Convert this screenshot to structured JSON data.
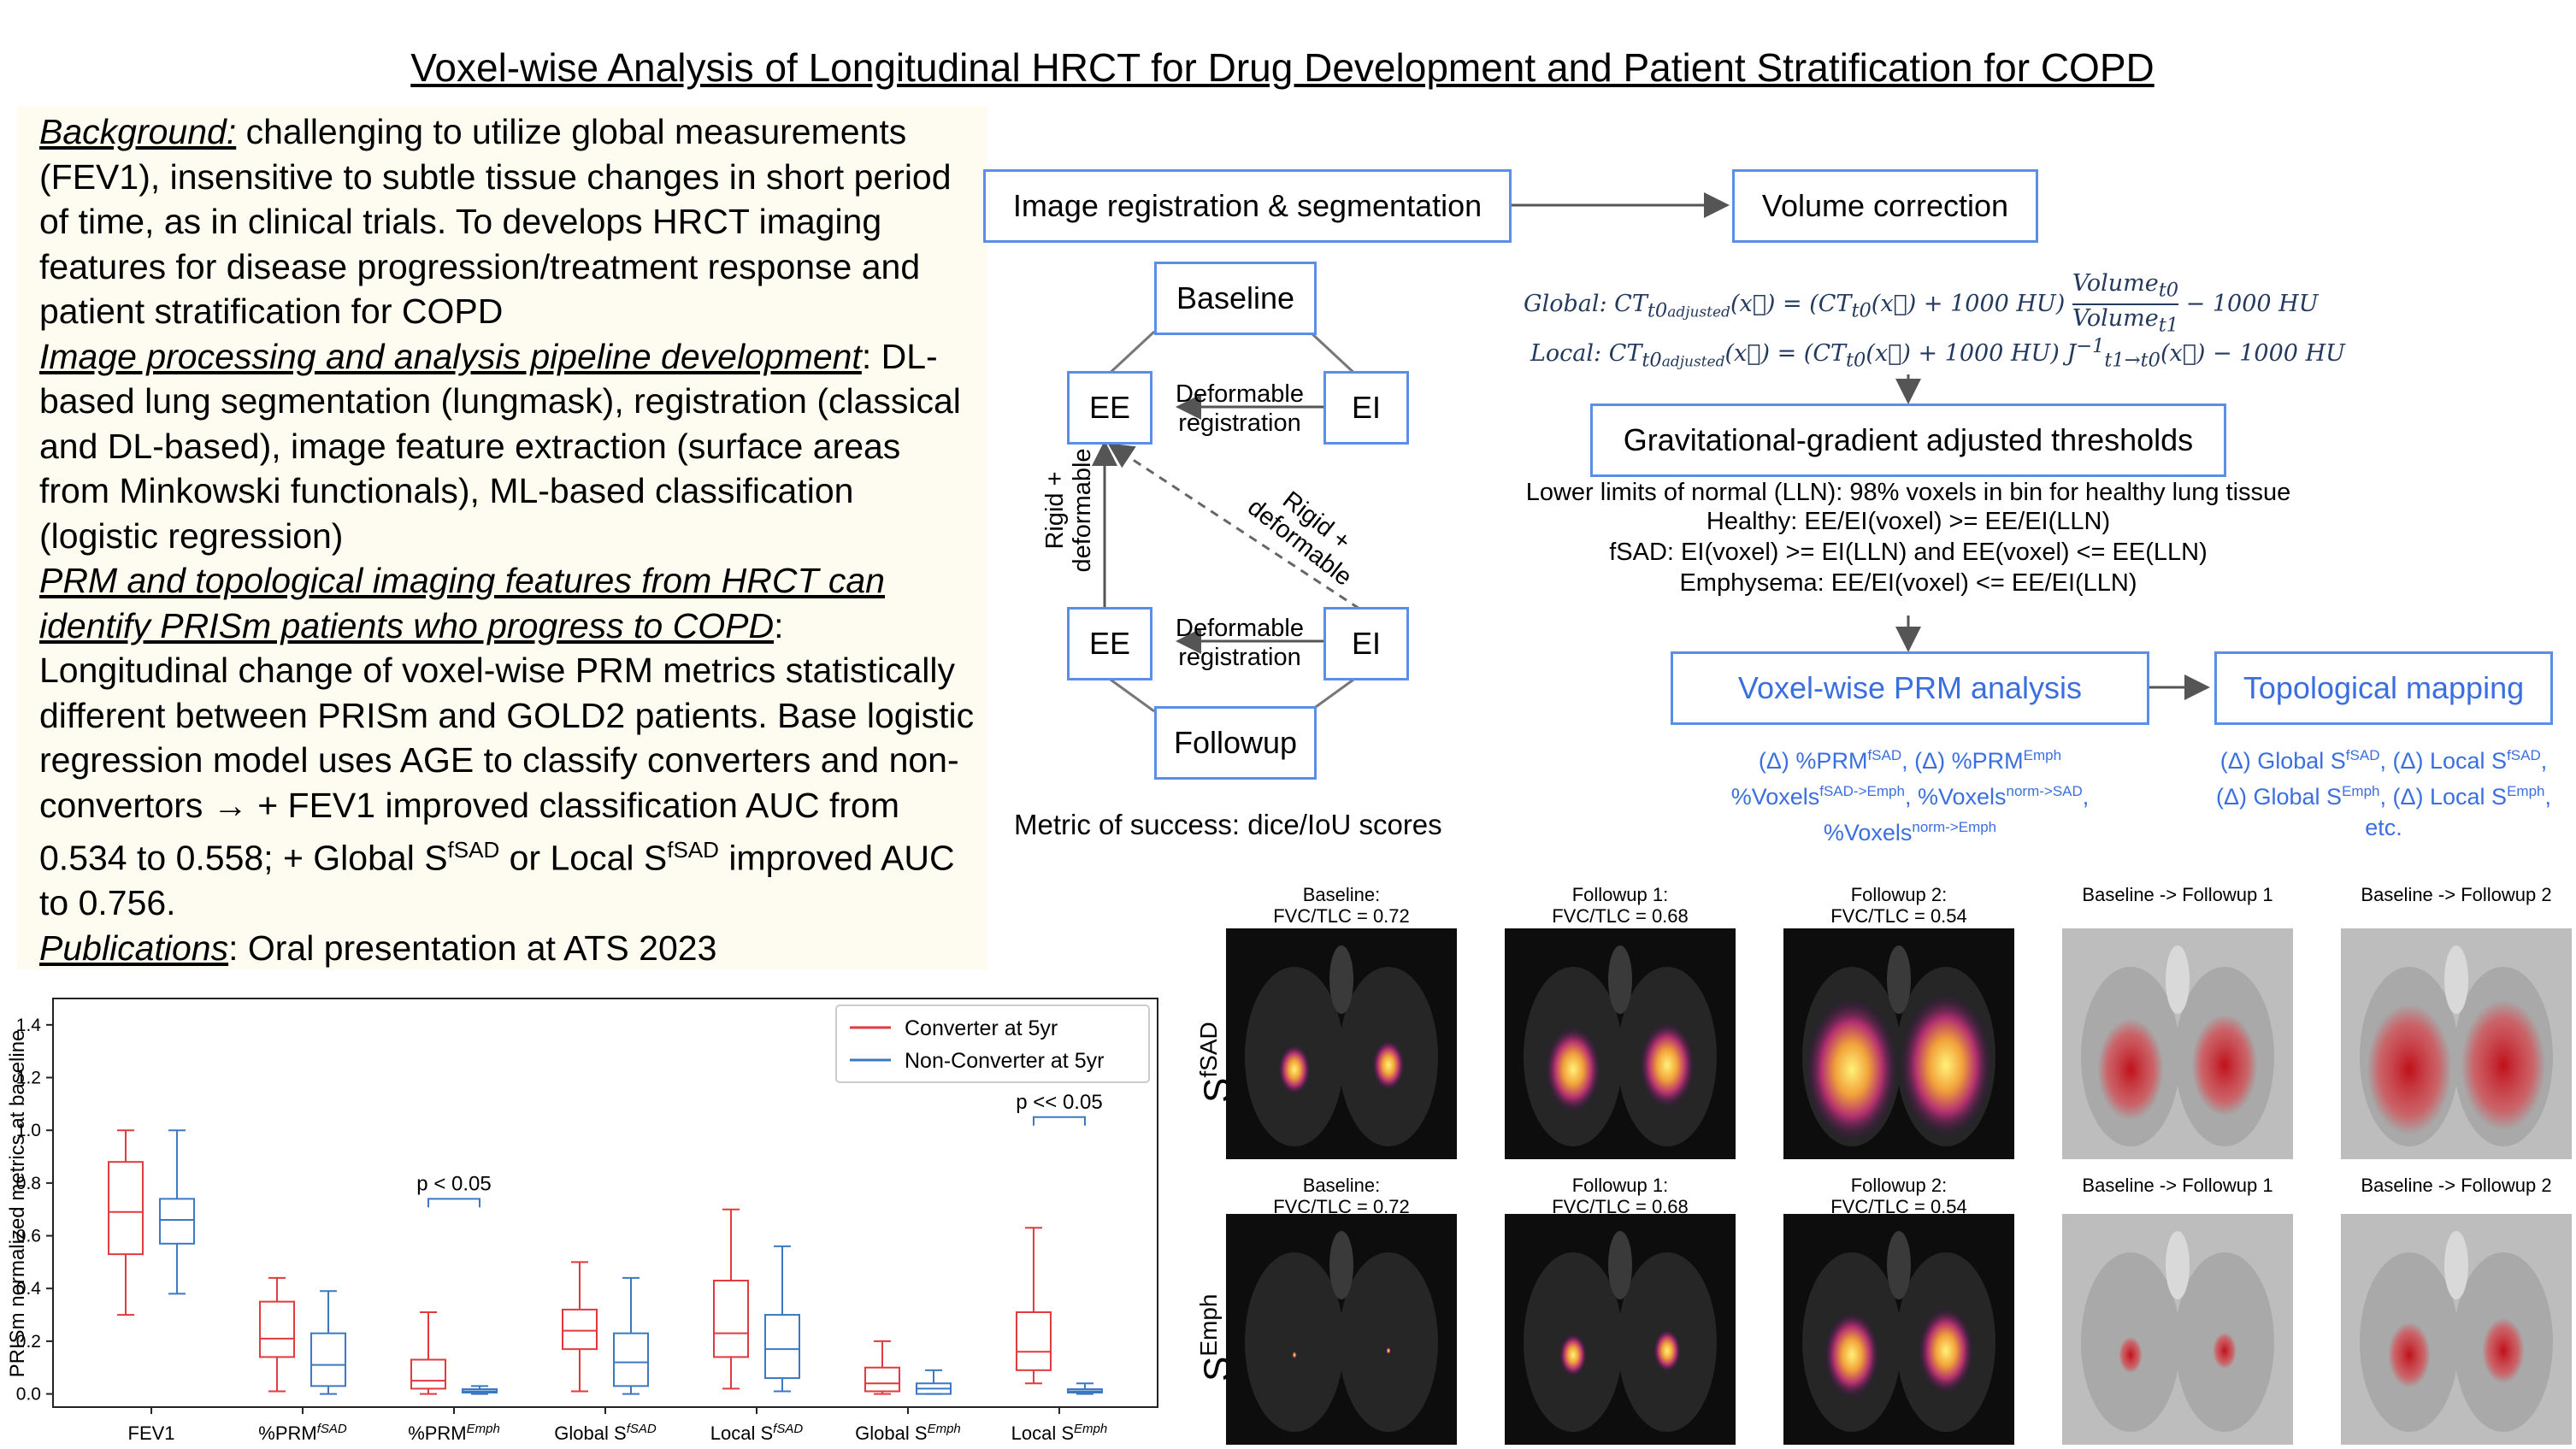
{
  "title": "Voxel-wise Analysis of Longitudinal HRCT for Drug Development and Patient Stratification for COPD",
  "left_text": {
    "p1_head": "Background:",
    "p1_body": " challenging to utilize global measurements (FEV1), insensitive to subtle tissue changes in short period of time, as in clinical trials. To develops HRCT imaging features for disease progression/treatment response and patient stratification for COPD",
    "p2_head": "Image processing and analysis pipeline development",
    "p2_body": ": DL-based lung segmentation (lungmask), registration (classical and DL-based), image feature extraction (surface areas from Minkowski functionals), ML-based classification (logistic regression)",
    "p3_head": "PRM and topological imaging features from HRCT can identify PRISm patients who progress to COPD",
    "p3_body_a": ": Longitudinal change of voxel-wise PRM metrics statistically different between PRISm and GOLD2 patients. Base logistic regression model uses AGE to classify converters and non-convertors ",
    "arrow": "→",
    "p3_body_b": " + FEV1 improved classification AUC from 0.534 to 0.558; + Global S",
    "p3_sup1": "fSAD",
    "p3_body_c": " or Local S",
    "p3_sup2": "fSAD",
    "p3_body_d": " improved AUC to 0.756.",
    "p4_head": "Publications",
    "p4_body": ": Oral presentation at ATS 2023"
  },
  "pipeline": {
    "img_reg": "Image registration & segmentation",
    "vol_corr": "Volume correction",
    "baseline": "Baseline",
    "followup": "Followup",
    "ee": "EE",
    "ei": "EI",
    "deformable_reg": "Deformable registration",
    "rigid_def_v": "Rigid + deformable",
    "rigid_def_d": "Rigid + deformable",
    "metric": "Metric of success: dice/IoU scores",
    "eq_global": "Global: CTt0adjusted(x⃗) = (CTt0(x⃗) + 1000 HU) Volumet0/Volumet1 − 1000 HU",
    "eq_local": "Local: CTt0adjusted(x⃗) = (CTt0(x⃗) + 1000 HU) J⁻¹t1→t0(x⃗) − 1000 HU",
    "grav": "Gravitational-gradient adjusted thresholds",
    "crit1": "Lower limits of normal (LLN): 98% voxels in bin for healthy lung tissue",
    "crit2": "Healthy: EE/EI(voxel) >= EE/EI(LLN)",
    "crit3": "fSAD: EI(voxel) >= EI(LLN) and EE(voxel) <= EE(LLN)",
    "crit4": "Emphysema: EE/EI(voxel) <= EE/EI(LLN)",
    "prm": "Voxel-wise PRM analysis",
    "topo": "Topological mapping",
    "prm_l1": "(Δ) %PRMfSAD, (Δ) %PRMEmph",
    "prm_l2": "%VoxelsfSAD->Emph, %Voxelsnorm->SAD,",
    "prm_l3": "%Voxelsnorm->Emph",
    "topo_l1": "(Δ) Global SfSAD, (Δ) Local SfSAD,",
    "topo_l2": "(Δ) Global SEmph, (Δ) Local SEmph,",
    "topo_l3": "etc."
  },
  "images": {
    "row_labels": [
      "SfSAD",
      "SEmph"
    ],
    "titles": [
      "Baseline:\nFVC/TLC = 0.72",
      "Followup 1:\nFVC/TLC = 0.68",
      "Followup 2:\nFVC/TLC = 0.54",
      "Baseline -> Followup 1",
      "Baseline -> Followup 2"
    ]
  },
  "chart_data": {
    "type": "box",
    "ylabel": "PRISm normalized metrics at baseline",
    "ylim": [
      -0.05,
      1.5
    ],
    "yticks": [
      "0.0",
      "0.2",
      "0.4",
      "0.6",
      "0.8",
      "1.0",
      "1.2",
      "1.4"
    ],
    "categories": [
      "FEV1",
      "%PRMfSAD",
      "%PRMEmph",
      "Global SfSAD",
      "Local SfSAD",
      "Global SEmph",
      "Local SEmph"
    ],
    "series": [
      {
        "name": "Converter at 5yr",
        "color": "#e03a3e",
        "boxes": [
          {
            "min": 0.3,
            "q1": 0.53,
            "median": 0.69,
            "q3": 0.88,
            "max": 1.0
          },
          {
            "min": 0.01,
            "q1": 0.14,
            "median": 0.21,
            "q3": 0.35,
            "max": 0.44
          },
          {
            "min": 0.0,
            "q1": 0.02,
            "median": 0.05,
            "q3": 0.13,
            "max": 0.31
          },
          {
            "min": 0.01,
            "q1": 0.17,
            "median": 0.24,
            "q3": 0.32,
            "max": 0.5
          },
          {
            "min": 0.02,
            "q1": 0.14,
            "median": 0.23,
            "q3": 0.43,
            "max": 0.7
          },
          {
            "min": 0.0,
            "q1": 0.01,
            "median": 0.04,
            "q3": 0.1,
            "max": 0.2
          },
          {
            "min": 0.04,
            "q1": 0.09,
            "median": 0.16,
            "q3": 0.31,
            "max": 0.63
          }
        ]
      },
      {
        "name": "Non-Converter at 5yr",
        "color": "#3b78c2",
        "boxes": [
          {
            "min": 0.38,
            "q1": 0.57,
            "median": 0.66,
            "q3": 0.74,
            "max": 1.0
          },
          {
            "min": 0.0,
            "q1": 0.03,
            "median": 0.11,
            "q3": 0.23,
            "max": 0.39
          },
          {
            "min": 0.0,
            "q1": 0.005,
            "median": 0.01,
            "q3": 0.018,
            "max": 0.03
          },
          {
            "min": 0.0,
            "q1": 0.03,
            "median": 0.12,
            "q3": 0.23,
            "max": 0.44
          },
          {
            "min": 0.01,
            "q1": 0.06,
            "median": 0.17,
            "q3": 0.3,
            "max": 0.56
          },
          {
            "min": 0.0,
            "q1": 0.0,
            "median": 0.02,
            "q3": 0.04,
            "max": 0.09
          },
          {
            "min": 0.0,
            "q1": 0.005,
            "median": 0.01,
            "q3": 0.018,
            "max": 0.04
          }
        ]
      }
    ],
    "annotations": [
      {
        "category": "%PRMEmph",
        "text": "p < 0.05"
      },
      {
        "category": "Local SEmph",
        "text": "p << 0.05"
      }
    ],
    "legend_position": "top-right"
  }
}
